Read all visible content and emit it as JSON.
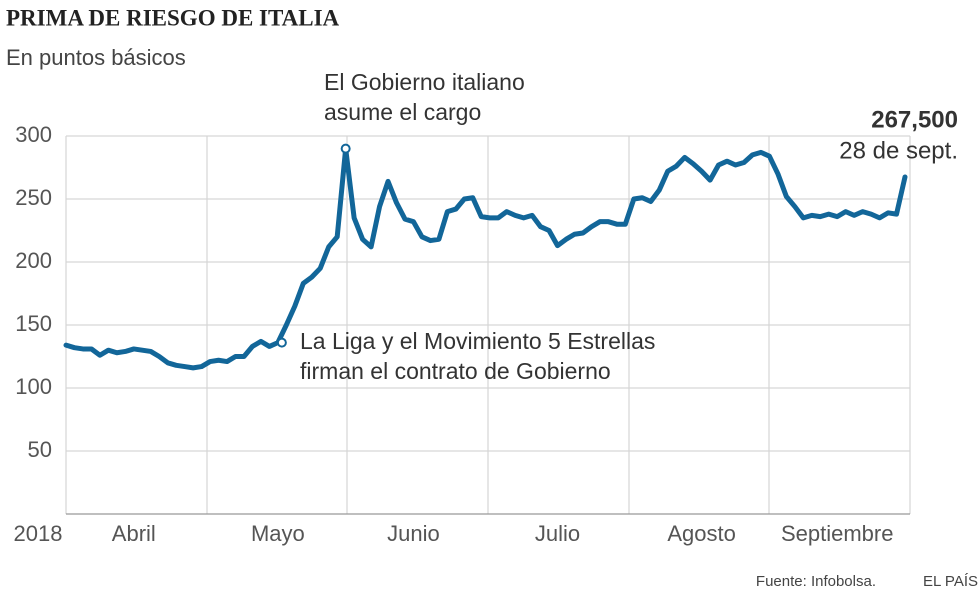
{
  "chart_data": {
    "type": "line",
    "title": "PRIMA DE RIESGO DE ITALIA",
    "subtitle": "En puntos básicos",
    "year_label": "2018",
    "source": "Fuente: Infobolsa.",
    "brand": "EL PAÍS",
    "end_date": "28 de sept.",
    "annotations": [
      {
        "lines": [
          "El Gobierno italiano",
          "asume el cargo"
        ]
      },
      {
        "lines": [
          "La Liga y el Movimiento 5 Estrellas",
          "firman el contrato de Gobierno"
        ]
      }
    ],
    "ylim": [
      0,
      300
    ],
    "yticks": [
      50,
      100,
      150,
      200,
      250,
      300
    ],
    "grid": true,
    "categories": [
      null,
      null,
      null,
      null,
      null,
      null,
      null,
      null,
      "Abril",
      null,
      null,
      null,
      null,
      null,
      null,
      null,
      null,
      null,
      null,
      null,
      null,
      null,
      null,
      null,
      null,
      "Mayo",
      null,
      null,
      null,
      null,
      null,
      null,
      null,
      null,
      null,
      null,
      null,
      null,
      null,
      null,
      null,
      "Junio",
      null,
      null,
      null,
      null,
      null,
      null,
      null,
      null,
      null,
      null,
      null,
      null,
      null,
      null,
      null,
      null,
      "Julio",
      null,
      null,
      null,
      null,
      null,
      null,
      null,
      null,
      null,
      null,
      null,
      null,
      null,
      null,
      null,
      null,
      "Agosto",
      null,
      null,
      null,
      null,
      null,
      null,
      null,
      null,
      null,
      null,
      null,
      null,
      null,
      null,
      null,
      "Septiembre",
      null,
      null,
      null,
      null,
      null,
      null,
      null,
      null
    ],
    "series": [
      {
        "name": "Prima de riesgo",
        "color": "#126699",
        "values": [
          134,
          132,
          131,
          131,
          126,
          130,
          128,
          129,
          131,
          130,
          129,
          125,
          120,
          118,
          117,
          116,
          117,
          121,
          122,
          121,
          125,
          125,
          133,
          137,
          133,
          136,
          150,
          165,
          183,
          188,
          195,
          212,
          220,
          290,
          235,
          218,
          212,
          244,
          264,
          247,
          234,
          232,
          220,
          217,
          218,
          240,
          242,
          250,
          251,
          236,
          235,
          235,
          240,
          237,
          235,
          237,
          228,
          225,
          213,
          218,
          222,
          223,
          228,
          232,
          232,
          230,
          230,
          250,
          251,
          248,
          257,
          272,
          276,
          283,
          278,
          272,
          265,
          277,
          280,
          277,
          279,
          285,
          287,
          284,
          270,
          252,
          244,
          235,
          237,
          236,
          238,
          236,
          240,
          237,
          240,
          238,
          235,
          239,
          238,
          267.5
        ],
        "value_labels": [
          null,
          null,
          null,
          null,
          null,
          null,
          null,
          null,
          null,
          null,
          null,
          null,
          null,
          null,
          null,
          null,
          null,
          null,
          null,
          null,
          null,
          null,
          null,
          null,
          null,
          null,
          null,
          null,
          null,
          null,
          null,
          null,
          null,
          null,
          null,
          null,
          null,
          null,
          null,
          null,
          null,
          null,
          null,
          null,
          null,
          null,
          null,
          null,
          null,
          null,
          null,
          null,
          null,
          null,
          null,
          null,
          null,
          null,
          null,
          null,
          null,
          null,
          null,
          null,
          null,
          null,
          null,
          null,
          null,
          null,
          null,
          null,
          null,
          null,
          null,
          null,
          null,
          null,
          null,
          null,
          null,
          null,
          null,
          null,
          null,
          null,
          null,
          null,
          null,
          null,
          null,
          null,
          null,
          null,
          null,
          null,
          null,
          null,
          null,
          "267,500"
        ]
      }
    ]
  }
}
